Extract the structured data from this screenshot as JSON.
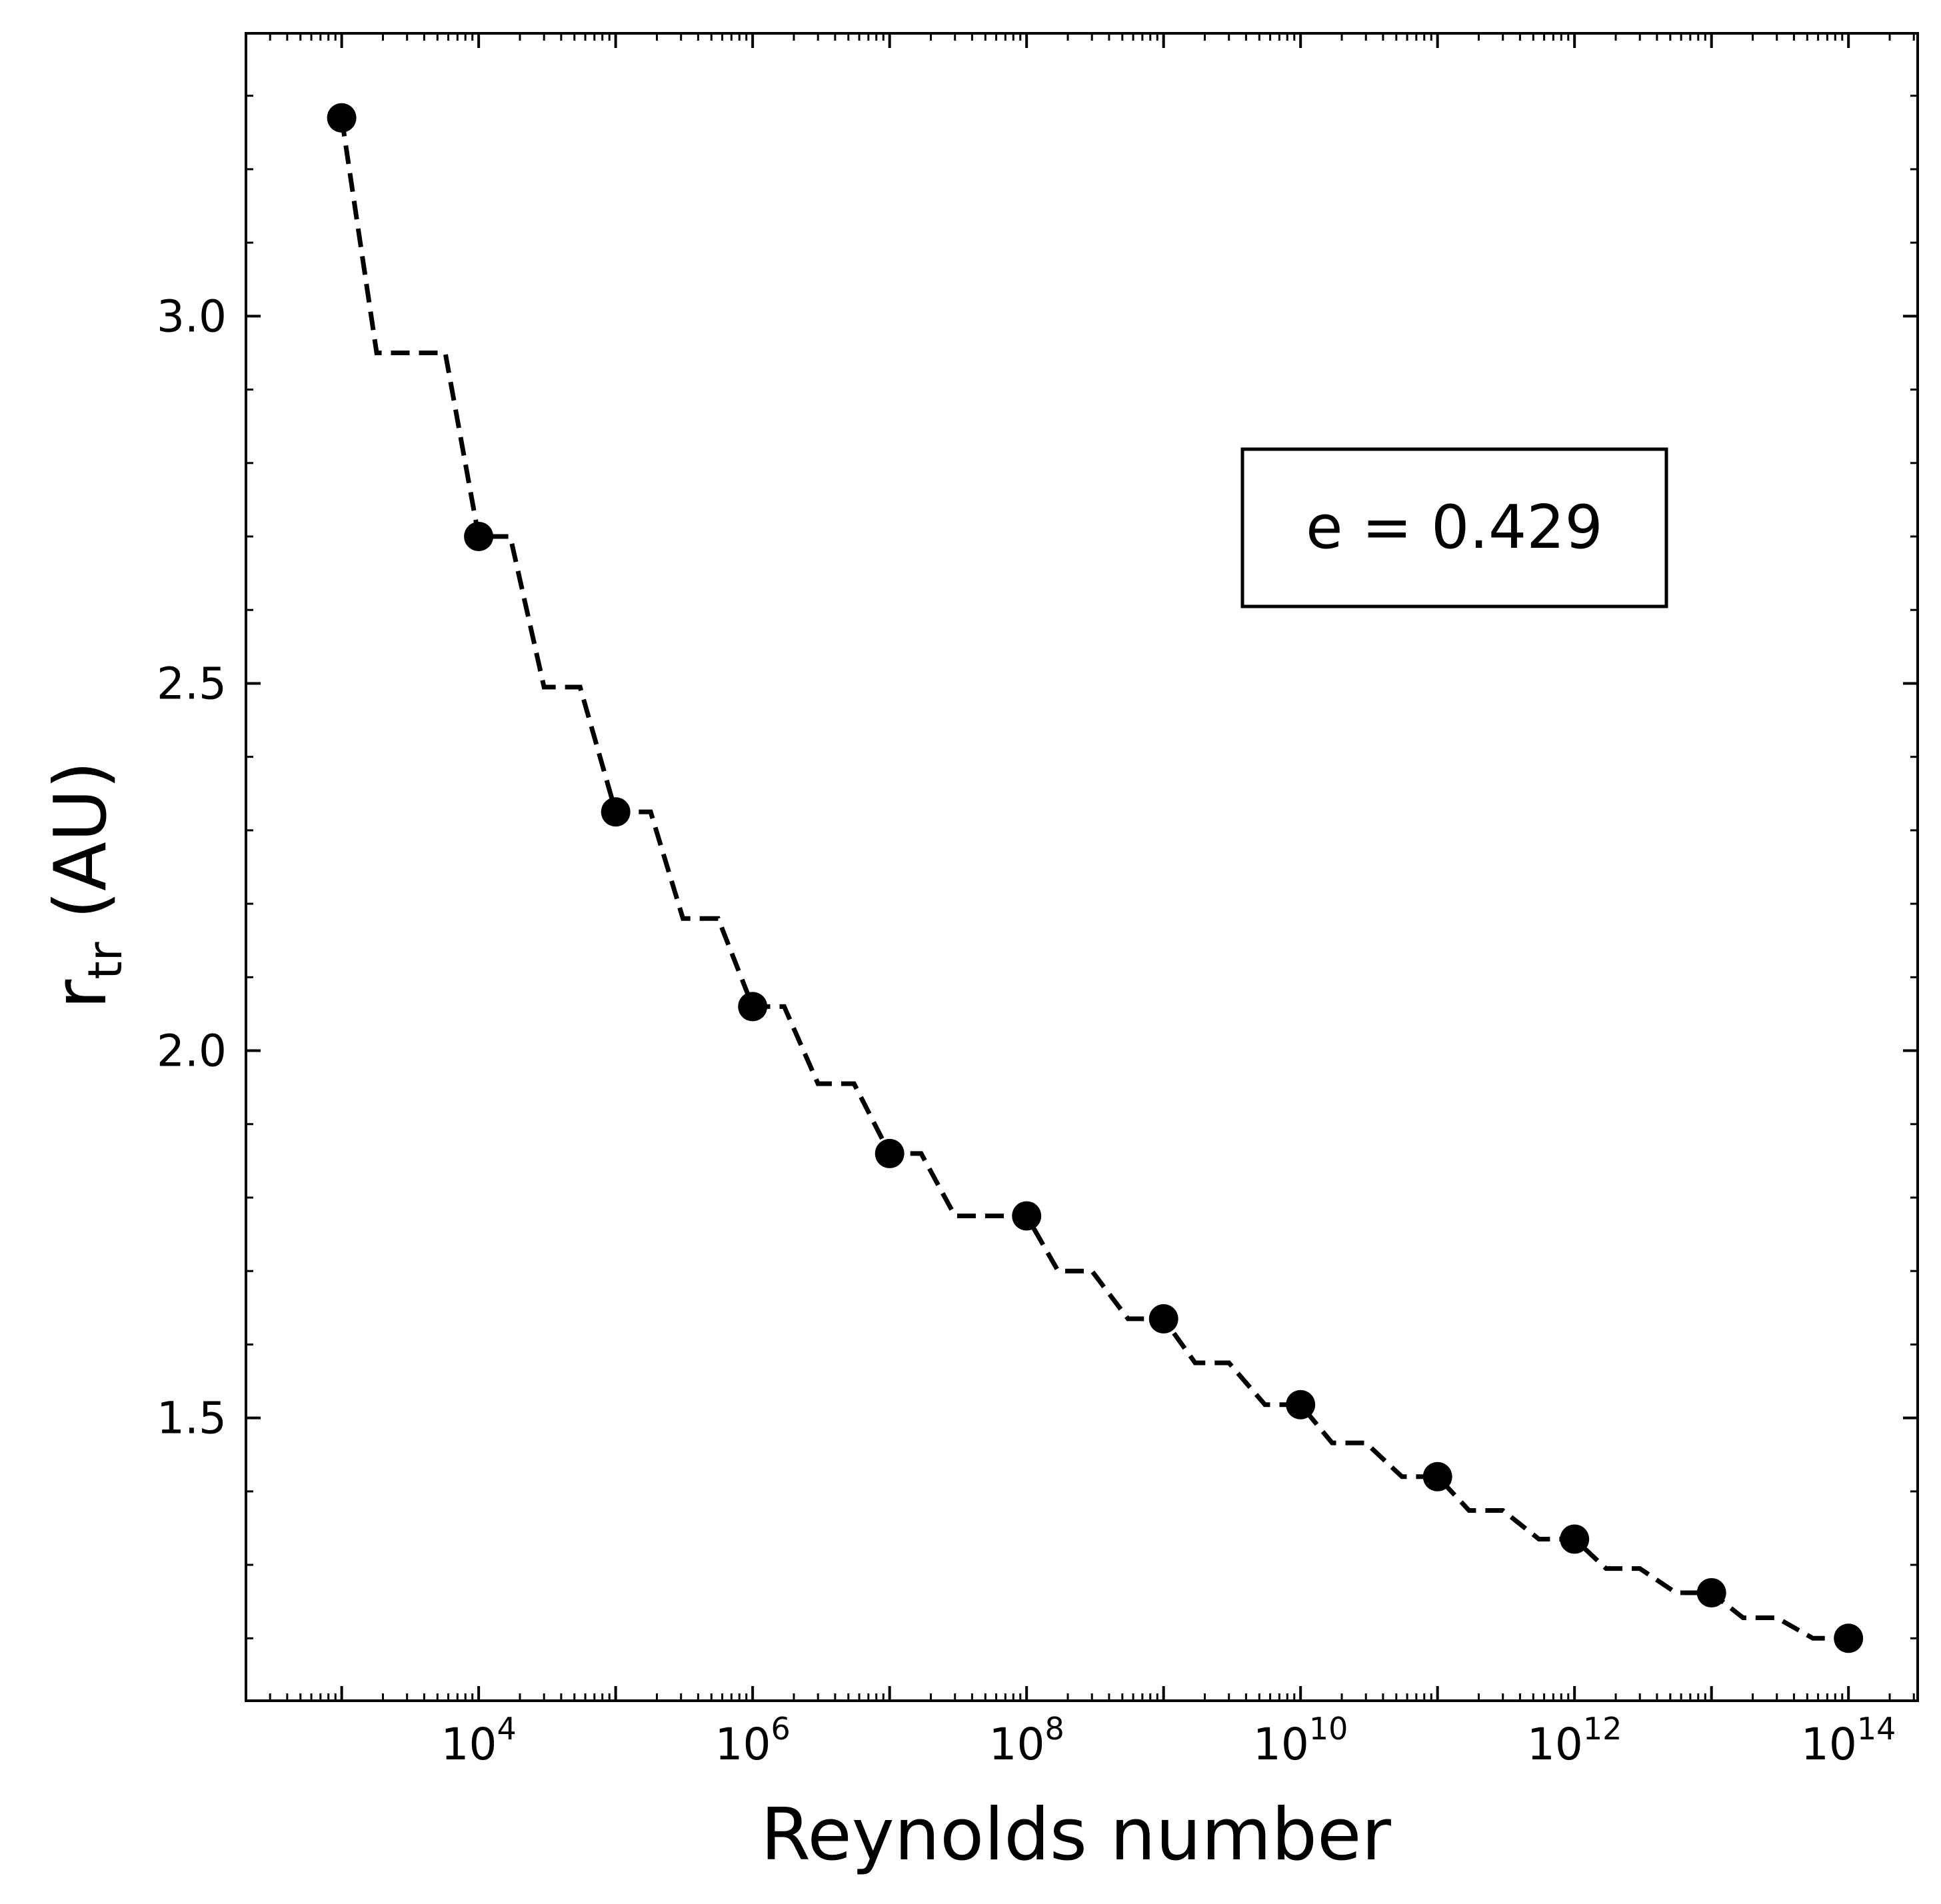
{
  "chart_data": {
    "type": "line",
    "title": "",
    "xlabel": "Reynolds number",
    "ylabel_main": "r",
    "ylabel_sub": "tr",
    "ylabel_unit": " (AU)",
    "x_scale": "log",
    "xlim": [
      200,
      320000000000000
    ],
    "ylim": [
      1.115,
      3.385
    ],
    "x_ticks": [
      {
        "value": 10000,
        "base": "10",
        "exp": "4"
      },
      {
        "value": 1000000,
        "base": "10",
        "exp": "6"
      },
      {
        "value": 100000000,
        "base": "10",
        "exp": "8"
      },
      {
        "value": 10000000000,
        "base": "10",
        "exp": "10"
      },
      {
        "value": 1000000000000,
        "base": "10",
        "exp": "12"
      },
      {
        "value": 100000000000000,
        "base": "10",
        "exp": "14"
      }
    ],
    "y_ticks": [
      {
        "value": 1.5,
        "label": "1.5"
      },
      {
        "value": 2.0,
        "label": "2.0"
      },
      {
        "value": 2.5,
        "label": "2.5"
      },
      {
        "value": 3.0,
        "label": "3.0"
      }
    ],
    "grid": false,
    "legend": "none",
    "series": [
      {
        "style": "markers",
        "color": "#000000",
        "x": [
          1000,
          10000,
          100000,
          1000000,
          10000000,
          100000000,
          1000000000,
          10000000000,
          100000000000,
          1000000000000,
          10000000000000,
          100000000000000
        ],
        "y": [
          3.27,
          2.7,
          2.325,
          2.06,
          1.86,
          1.775,
          1.635,
          1.518,
          1.42,
          1.335,
          1.262,
          1.2
        ]
      },
      {
        "style": "dashed",
        "color": "#000000",
        "x": [
          1000,
          1800,
          5700,
          10000,
          17000,
          30000,
          55000,
          100000,
          180000,
          310000,
          560000,
          1000000,
          1700000,
          3000000,
          5500000,
          10000000,
          17000000,
          30000000,
          55000000,
          100000000,
          170000000,
          300000000,
          550000000,
          1000000000,
          1700000000,
          3000000000,
          5500000000,
          10000000000,
          17000000000,
          30000000000,
          55000000000,
          100000000000,
          170000000000,
          300000000000,
          550000000000,
          1000000000000,
          1700000000000,
          3000000000000,
          5500000000000,
          10000000000000,
          17000000000000,
          30000000000000,
          55000000000000,
          100000000000000
        ],
        "y": [
          3.27,
          2.95,
          2.95,
          2.7,
          2.7,
          2.495,
          2.495,
          2.325,
          2.325,
          2.18,
          2.18,
          2.06,
          2.06,
          1.955,
          1.955,
          1.86,
          1.86,
          1.775,
          1.775,
          1.775,
          1.7,
          1.7,
          1.635,
          1.635,
          1.575,
          1.575,
          1.518,
          1.518,
          1.466,
          1.466,
          1.42,
          1.42,
          1.374,
          1.374,
          1.335,
          1.335,
          1.295,
          1.295,
          1.262,
          1.262,
          1.228,
          1.228,
          1.2,
          1.2
        ]
      }
    ],
    "annotation": {
      "text": "e = 0.429"
    }
  }
}
